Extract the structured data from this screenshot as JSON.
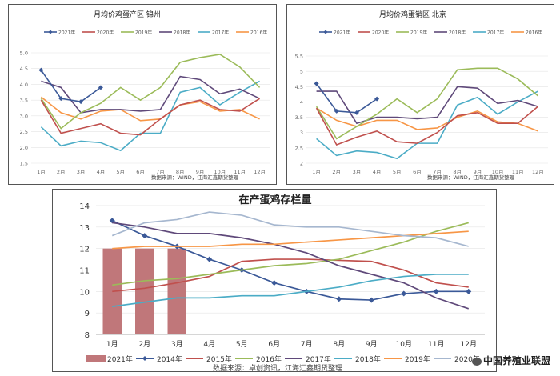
{
  "chart_data": [
    {
      "type": "line",
      "title": "月均价鸡蛋产区   锦州",
      "source": "数据来源：WIND，江海汇鑫期货整理",
      "categories": [
        "1月",
        "2月",
        "3月",
        "4月",
        "5月",
        "6月",
        "7月",
        "8月",
        "9月",
        "10月",
        "11月",
        "12月"
      ],
      "ylim": [
        1.5,
        5.0
      ],
      "yticks": [
        "1.5",
        "2.0",
        "2.5",
        "3.0",
        "3.5",
        "4.0",
        "4.5",
        "5.0"
      ],
      "series": [
        {
          "name": "2021年",
          "color": "#3b5998",
          "marker": true,
          "values": [
            4.45,
            3.55,
            3.45,
            3.9,
            null,
            null,
            null,
            null,
            null,
            null,
            null,
            null
          ]
        },
        {
          "name": "2020年",
          "color": "#c0504d",
          "values": [
            3.5,
            2.45,
            2.6,
            2.75,
            2.45,
            2.4,
            2.9,
            3.35,
            3.5,
            3.2,
            3.15,
            3.55
          ]
        },
        {
          "name": "2019年",
          "color": "#9bbb59",
          "values": [
            3.55,
            2.6,
            3.1,
            3.4,
            3.9,
            3.5,
            3.9,
            4.7,
            4.85,
            4.95,
            4.55,
            3.9
          ]
        },
        {
          "name": "2018年",
          "color": "#5f497a",
          "values": [
            4.1,
            3.9,
            3.1,
            3.2,
            3.2,
            3.15,
            3.2,
            4.25,
            4.15,
            3.7,
            3.85,
            3.55
          ]
        },
        {
          "name": "2017年",
          "color": "#4bacc6",
          "values": [
            2.65,
            2.05,
            2.2,
            2.15,
            1.9,
            2.45,
            2.45,
            3.75,
            3.9,
            3.35,
            3.75,
            4.1
          ]
        },
        {
          "name": "2016年",
          "color": "#f79646",
          "values": [
            3.6,
            3.1,
            2.9,
            3.15,
            3.2,
            2.85,
            2.9,
            3.35,
            3.45,
            3.15,
            3.2,
            2.9
          ]
        }
      ]
    },
    {
      "type": "line",
      "title": "月均价鸡蛋销区   北京",
      "source": "数据来源：WIND，江海汇鑫期货整理",
      "categories": [
        "1月",
        "2月",
        "3月",
        "4月",
        "5月",
        "6月",
        "7月",
        "8月",
        "9月",
        "10月",
        "11月",
        "12月"
      ],
      "ylim": [
        2.0,
        5.5
      ],
      "yticks": [
        "2",
        "2.5",
        "3",
        "3.5",
        "4",
        "4.5",
        "5",
        "5.5"
      ],
      "series": [
        {
          "name": "2021年",
          "color": "#3b5998",
          "marker": true,
          "values": [
            4.6,
            3.7,
            3.65,
            4.1,
            null,
            null,
            null,
            null,
            null,
            null,
            null,
            null
          ]
        },
        {
          "name": "2020年",
          "color": "#c0504d",
          "values": [
            3.8,
            2.6,
            2.85,
            3.05,
            2.7,
            2.65,
            3.0,
            3.55,
            3.65,
            3.3,
            3.3,
            3.85
          ]
        },
        {
          "name": "2019年",
          "color": "#9bbb59",
          "values": [
            3.85,
            2.8,
            3.2,
            3.6,
            4.1,
            3.65,
            4.1,
            5.05,
            5.1,
            5.1,
            4.75,
            4.2
          ]
        },
        {
          "name": "2018年",
          "color": "#5f497a",
          "values": [
            4.35,
            4.35,
            3.3,
            3.5,
            3.5,
            3.45,
            3.5,
            4.5,
            4.45,
            3.95,
            4.05,
            3.85
          ]
        },
        {
          "name": "2017年",
          "color": "#4bacc6",
          "values": [
            2.8,
            2.25,
            2.4,
            2.35,
            2.15,
            2.65,
            2.65,
            3.9,
            4.15,
            3.6,
            4.0,
            4.35
          ]
        },
        {
          "name": "2016年",
          "color": "#f79646",
          "values": [
            3.8,
            3.4,
            3.2,
            3.4,
            3.4,
            3.1,
            3.15,
            3.5,
            3.7,
            3.35,
            3.3,
            3.05
          ]
        }
      ]
    },
    {
      "type": "line",
      "title": "在产蛋鸡存栏量",
      "source": "数据来源：卓创资讯，江海汇鑫期货整理",
      "categories": [
        "1月",
        "2月",
        "3月",
        "4月",
        "5月",
        "6月",
        "7月",
        "8月",
        "9月",
        "10月",
        "11月",
        "12月"
      ],
      "ylim": [
        8,
        14
      ],
      "yticks": [
        "8",
        "9",
        "10",
        "11",
        "12",
        "13",
        "14"
      ],
      "bar_series": {
        "name": "2021年",
        "color": "#c0777a",
        "values": [
          12.0,
          12.0,
          12.0
        ]
      },
      "series": [
        {
          "name": "2014年",
          "color": "#3b5998",
          "marker": true,
          "values": [
            13.3,
            12.6,
            12.1,
            11.5,
            11.0,
            10.4,
            10.0,
            9.65,
            9.6,
            9.9,
            10.0,
            10.0
          ]
        },
        {
          "name": "2015年",
          "color": "#c0504d",
          "values": [
            10.0,
            10.15,
            10.4,
            10.7,
            11.4,
            11.5,
            11.5,
            11.45,
            11.4,
            11.0,
            10.4,
            10.2
          ]
        },
        {
          "name": "2016年",
          "color": "#9bbb59",
          "values": [
            10.3,
            10.5,
            10.6,
            10.8,
            11.0,
            11.2,
            11.3,
            11.5,
            11.9,
            12.3,
            12.8,
            13.2
          ]
        },
        {
          "name": "2017年",
          "color": "#5f497a",
          "values": [
            13.2,
            13.0,
            12.7,
            12.7,
            12.5,
            12.2,
            11.8,
            11.2,
            10.8,
            10.4,
            9.7,
            9.2
          ]
        },
        {
          "name": "2018年",
          "color": "#4bacc6",
          "values": [
            9.3,
            9.5,
            9.7,
            9.7,
            9.8,
            9.8,
            10.0,
            10.2,
            10.5,
            10.7,
            10.8,
            10.8
          ]
        },
        {
          "name": "2019年",
          "color": "#f79646",
          "values": [
            12.0,
            12.1,
            12.1,
            12.1,
            12.2,
            12.2,
            12.3,
            12.4,
            12.5,
            12.6,
            12.7,
            12.8
          ]
        },
        {
          "name": "2020年",
          "color": "#a6b7cf",
          "values": [
            12.6,
            13.2,
            13.35,
            13.7,
            13.55,
            13.1,
            13.0,
            13.0,
            12.8,
            12.6,
            12.5,
            12.1
          ]
        }
      ]
    }
  ],
  "watermark": "中国养殖业联盟"
}
